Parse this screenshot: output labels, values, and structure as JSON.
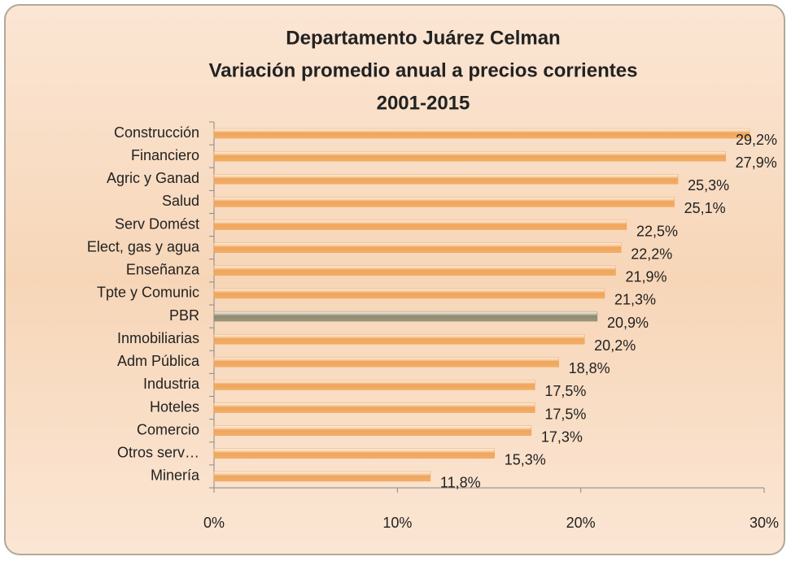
{
  "chart_data": {
    "type": "bar",
    "orientation": "horizontal",
    "title": [
      "Departamento Juárez Celman",
      "Variación promedio anual a precios corrientes",
      "2001-2015"
    ],
    "categories": [
      "Construcción",
      "Financiero",
      "Agric y Ganad",
      "Salud",
      "Serv Domést",
      "Elect, gas y agua",
      "Enseñanza",
      "Tpte y Comunic",
      "PBR",
      "Inmobiliarias",
      "Adm Pública",
      "Industria",
      "Hoteles",
      "Comercio",
      "Otros serv…",
      "Minería"
    ],
    "values": [
      29.2,
      27.9,
      25.3,
      25.1,
      22.5,
      22.2,
      21.9,
      21.3,
      20.9,
      20.2,
      18.8,
      17.5,
      17.5,
      17.3,
      15.3,
      11.8
    ],
    "value_labels": [
      "29,2%",
      "27,9%",
      "25,3%",
      "25,1%",
      "22,5%",
      "22,2%",
      "21,9%",
      "21,3%",
      "20,9%",
      "20,2%",
      "18,8%",
      "17,5%",
      "17,5%",
      "17,3%",
      "15,3%",
      "11,8%"
    ],
    "colors": [
      "#f0a55a",
      "#f0a55a",
      "#f0a55a",
      "#f0a55a",
      "#f0a55a",
      "#f0a55a",
      "#f0a55a",
      "#f0a55a",
      "#8c8a70",
      "#f0a55a",
      "#f0a55a",
      "#f0a55a",
      "#f0a55a",
      "#f0a55a",
      "#f0a55a",
      "#f0a55a"
    ],
    "xlim": [
      0,
      30
    ],
    "xticks": [
      {
        "value": 0,
        "label": "0%"
      },
      {
        "value": 10,
        "label": "10%"
      },
      {
        "value": 20,
        "label": "20%"
      },
      {
        "value": 30,
        "label": "30%"
      }
    ],
    "grid": false
  }
}
